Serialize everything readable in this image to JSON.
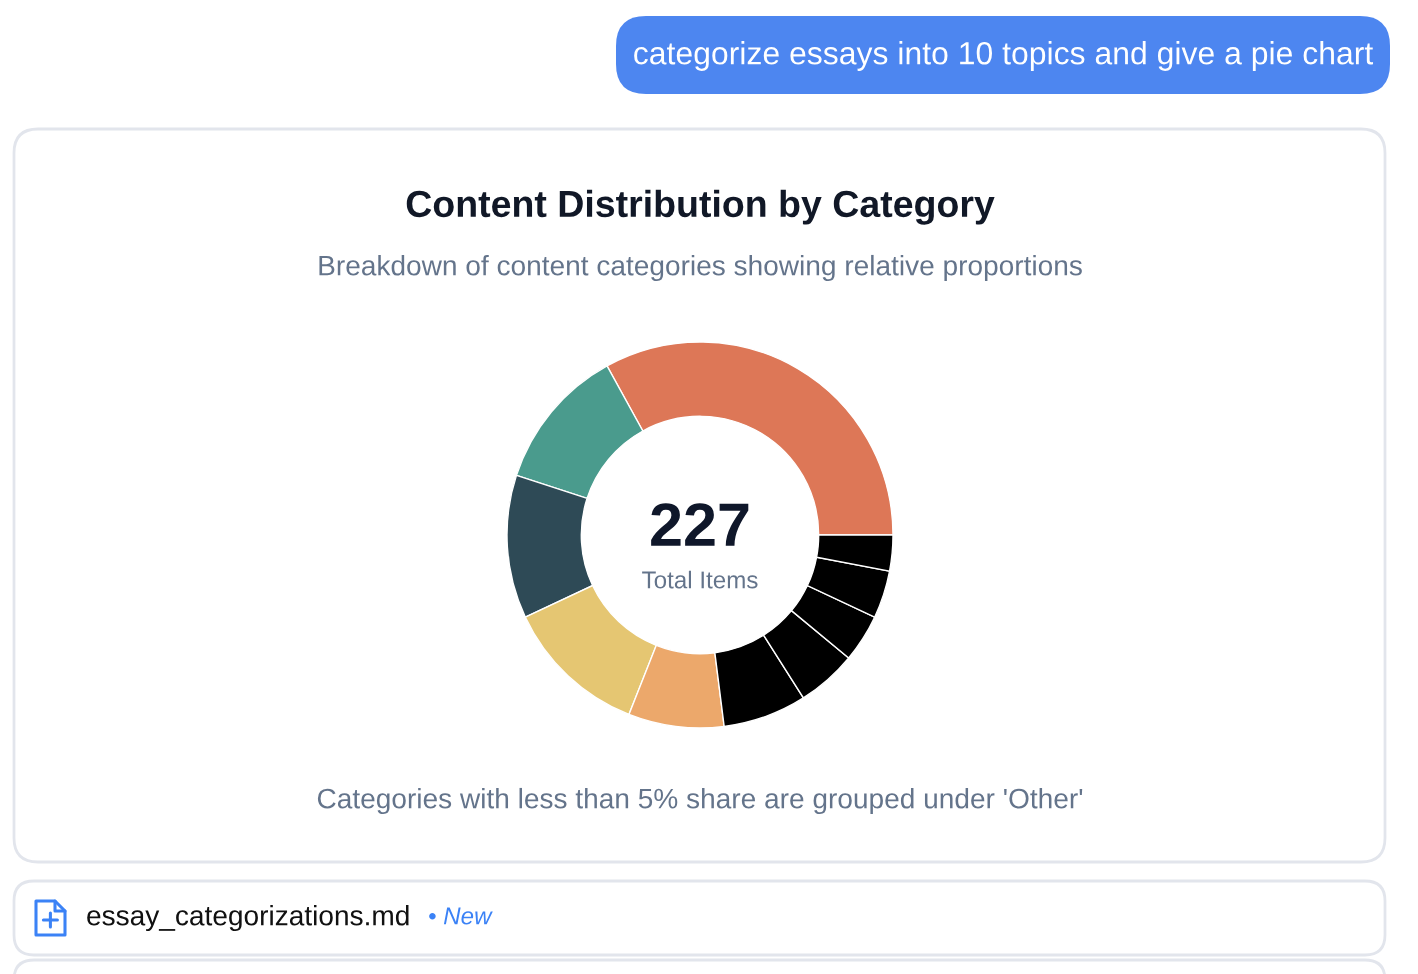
{
  "chart_data": {
    "type": "donut",
    "title": "Content Distribution by Category",
    "subtitle": "Breakdown of content categories showing relative proportions",
    "categories": [
      null,
      null,
      null,
      null,
      null,
      null,
      null,
      null,
      null,
      null
    ],
    "values": [
      33,
      12,
      12,
      12,
      8,
      7,
      5,
      4,
      4,
      3
    ],
    "colors": [
      "#dd7757",
      "#4a9b8d",
      "#2e4a56",
      "#e5c672",
      "#eca86b",
      "#000000",
      "#000000",
      "#000000",
      "#000000",
      "#000000"
    ],
    "annotations": [
      "categorize essays into 10 topics and give a pie chart",
      "227",
      "Total Items",
      "Categories with less than 5% share are grouped under 'Other'",
      "essay_categorizations.md",
      "• New"
    ]
  }
}
